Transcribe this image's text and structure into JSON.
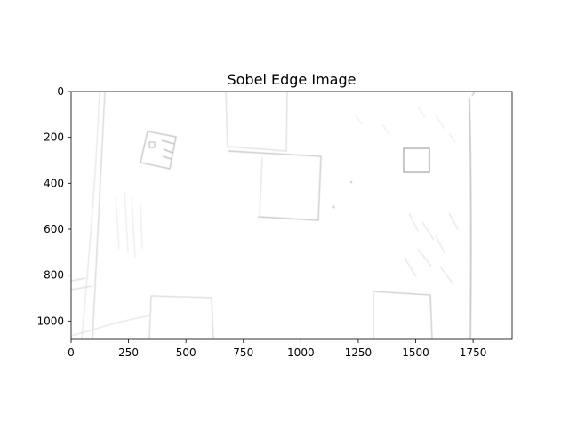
{
  "chart_data": {
    "type": "image",
    "title": "Sobel Edge Image",
    "xlabel": "",
    "ylabel": "",
    "xlim": [
      0,
      1920
    ],
    "ylim": [
      1080,
      0
    ],
    "x_ticks": [
      0,
      250,
      500,
      750,
      1000,
      1250,
      1500,
      1750
    ],
    "y_ticks": [
      0,
      200,
      400,
      600,
      800,
      1000
    ],
    "x_tick_labels": [
      "0",
      "250",
      "500",
      "750",
      "1000",
      "1250",
      "1500",
      "1750"
    ],
    "y_tick_labels": [
      "0",
      "200",
      "400",
      "600",
      "800",
      "1000"
    ],
    "colormap": "gray_r",
    "grid": false
  }
}
